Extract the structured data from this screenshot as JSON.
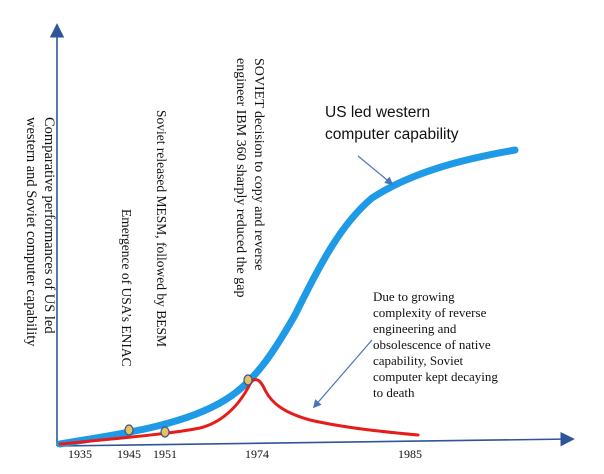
{
  "diagram": {
    "y_axis_title": [
      "Comparative performances of US led",
      "western and Soviet computer capability"
    ],
    "annotations": {
      "eniac": "Emergence of USA’s ENIAC",
      "mesm": "Soviet released MESM, followed by BESM",
      "ibm": [
        "SOVIET decision to copy and reverse",
        "engineer IBM 360 sharply reduced the gap"
      ]
    },
    "us_label": [
      "US led western",
      "computer capability"
    ],
    "soviet_label": [
      "Due to growing",
      "complexity of reverse",
      "engineering and",
      "obsolescence of native",
      "capability, Soviet",
      "computer kept decaying",
      "to death"
    ],
    "x_ticks": [
      "1935",
      "1945",
      "1951",
      "1974",
      "1985"
    ],
    "colors": {
      "axis": "#2f5597",
      "us_curve": "#1f9ae6",
      "soviet_curve": "#e81b1b",
      "marker_fill": "#e8c15a",
      "marker_stroke": "#2f5597",
      "pointer": "#4a74b8"
    }
  }
}
